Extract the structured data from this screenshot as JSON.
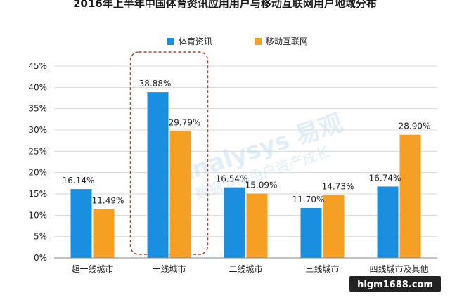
{
  "chart_data": {
    "type": "bar",
    "title": "2016年上半年中国体育资讯应用用户与移动互联网用户地域分布",
    "categories": [
      "超一线城市",
      "一线城市",
      "二线城市",
      "三线城市",
      "四线城市及其他"
    ],
    "series": [
      {
        "name": "体育资讯",
        "values": [
          16.14,
          38.88,
          16.54,
          11.7,
          16.74
        ],
        "labels": [
          "16.14%",
          "38.88%",
          "16.54%",
          "11.70%",
          "16.74%"
        ],
        "color": "#1a8fe0"
      },
      {
        "name": "移动互联网",
        "values": [
          11.49,
          29.79,
          15.09,
          14.73,
          28.9
        ],
        "labels": [
          "11.49%",
          "29.79%",
          "15.09%",
          "14.73%",
          "28.90%"
        ],
        "color": "#f5a024"
      }
    ],
    "ylim": [
      0,
      45
    ],
    "yticks": [
      "0%",
      "5%",
      "10%",
      "15%",
      "20%",
      "25%",
      "30%",
      "35%",
      "40%",
      "45%"
    ],
    "legend_position": "top",
    "highlight_category": "一线城市",
    "highlight_color": "#c0392b",
    "watermark_brand": "Analysys 易观",
    "watermark_slogan": "数据驱动用户资产成长",
    "site_watermark": "hlgm1688.com"
  }
}
